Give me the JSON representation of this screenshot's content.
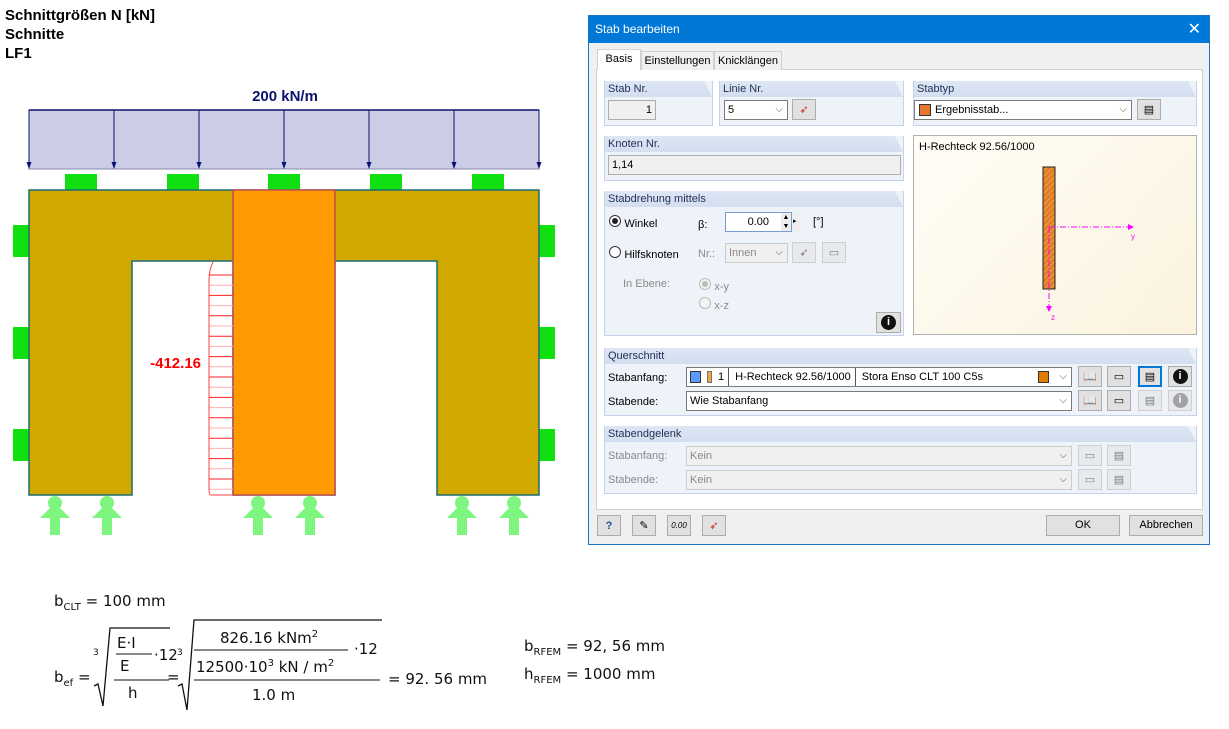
{
  "header": {
    "line1": "Schnittgrößen N [kN]",
    "line2": "Schnitte",
    "line3": "LF1"
  },
  "model": {
    "load_label": "200 kN/m",
    "result_value": "-412.16",
    "colors": {
      "wall": "#d0a800",
      "member": "#ff9b00",
      "load_fill": "#cccce6",
      "load_line": "#0a1470",
      "support": "#10e010",
      "support_bottom": "#7ef57e",
      "diagram": "#ff0000"
    }
  },
  "dialog": {
    "title": "Stab bearbeiten",
    "tabs": [
      {
        "label": "Basis",
        "active": true
      },
      {
        "label": "Einstellungen"
      },
      {
        "label": "Knicklängen"
      }
    ],
    "stab_nr": {
      "label": "Stab Nr.",
      "value": "1"
    },
    "linie_nr": {
      "label": "Linie Nr.",
      "value": "5"
    },
    "stabtyp": {
      "label": "Stabtyp",
      "value": "Ergebnisstab...",
      "color": "#e8762c"
    },
    "knoten_nr": {
      "label": "Knoten Nr.",
      "value": "1,14"
    },
    "stabdrehung": {
      "label": "Stabdrehung mittels",
      "winkel": "Winkel",
      "beta_label": "β:",
      "beta_value": "0.00",
      "unit": "[°]",
      "hilfsknoten": "Hilfsknoten",
      "nr_label": "Nr.:",
      "nr_value": "Innen",
      "ebene_label": "In Ebene:",
      "xy": "x-y",
      "xz": "x-z"
    },
    "preview": {
      "title": "H-Rechteck 92.56/1000",
      "y_axis": "y",
      "z_axis": "z"
    },
    "querschnitt": {
      "label": "Querschnitt",
      "start_label": "Stabanfang:",
      "start_no": "1",
      "start_section": "H-Rechteck 92.56/1000",
      "start_material": "Stora Enso CLT 100 C5s",
      "end_label": "Stabende:",
      "end_value": "Wie Stabanfang"
    },
    "gelenk": {
      "label": "Stabendgelenk",
      "start_label": "Stabanfang:",
      "start_value": "Kein",
      "end_label": "Stabende:",
      "end_value": "Kein"
    },
    "ok": "OK",
    "cancel": "Abbrechen"
  },
  "formulas": {
    "b_clt": {
      "sym": "b",
      "sub": "CLT",
      "value": "= 100 mm"
    },
    "b_ef": {
      "sym": "b",
      "sub": "ef",
      "num_sym": "E·I",
      "den_sym": "E",
      "h": "h",
      "factor": "·12",
      "num_val": "826.16 kNm",
      "num_exp": "2",
      "den_val": "12500·10",
      "den_exp": "3",
      "den_unit": " kN / m",
      "den_unit_exp": "2",
      "h_val": "1.0 m",
      "root": "3",
      "result": "= 92. 56 mm"
    },
    "b_rfem": {
      "sym": "b",
      "sub": "RFEM",
      "value": "= 92, 56 mm"
    },
    "h_rfem": {
      "sym": "h",
      "sub": "RFEM",
      "value": "= 1000 mm"
    }
  }
}
